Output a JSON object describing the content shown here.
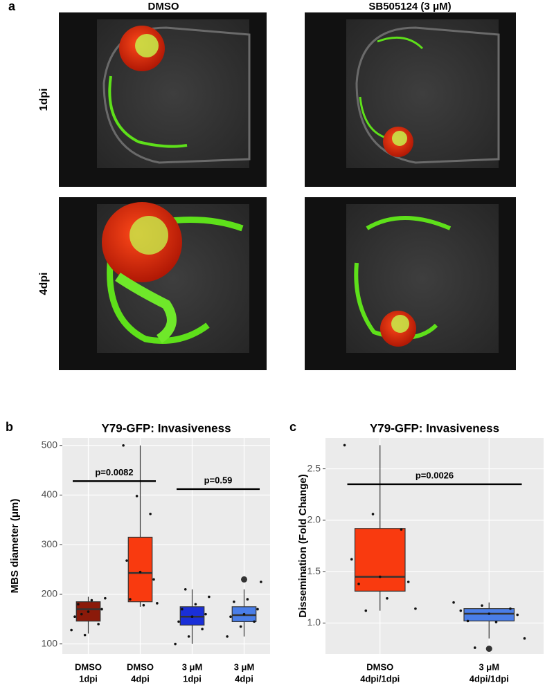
{
  "panel_a": {
    "label": "a",
    "columns": [
      "DMSO",
      "SB505124 (3 μM)"
    ],
    "rows": [
      "1dpi",
      "4dpi"
    ]
  },
  "chart_data": [
    {
      "type": "box",
      "panel_label": "b",
      "title": "Y79-GFP: Invasiveness",
      "y_label": "MBS diameter (μm)",
      "categories": [
        [
          "DMSO",
          "1dpi"
        ],
        [
          "DMSO",
          "4dpi"
        ],
        [
          "3 μM",
          "1dpi"
        ],
        [
          "3 μM",
          "4dpi"
        ]
      ],
      "ylim": [
        80,
        515
      ],
      "yticks": [
        100,
        200,
        300,
        400,
        500
      ],
      "grid": true,
      "boxes": [
        {
          "color": "#8b1a0a",
          "min": 121,
          "q1": 146,
          "median": 170,
          "q3": 185,
          "max": 195,
          "outliers": [],
          "points": [
            128,
            118,
            140,
            155,
            165,
            170,
            180,
            188,
            192,
            160
          ]
        },
        {
          "color": "#f93a0f",
          "min": 175,
          "q1": 185,
          "median": 243,
          "q3": 315,
          "max": 500,
          "outliers": [],
          "points": [
            500,
            398,
            362,
            268,
            245,
            230,
            190,
            178,
            182
          ]
        },
        {
          "color": "#1a2fd8",
          "min": 100,
          "q1": 138,
          "median": 155,
          "q3": 175,
          "max": 210,
          "outliers": [],
          "points": [
            100,
            115,
            130,
            145,
            155,
            160,
            170,
            180,
            195,
            210
          ]
        },
        {
          "color": "#4a7ee8",
          "min": 115,
          "q1": 145,
          "median": 158,
          "q3": 175,
          "max": 210,
          "outliers": [
            230
          ],
          "points": [
            115,
            135,
            145,
            155,
            160,
            170,
            185,
            190,
            225
          ]
        }
      ],
      "significance": [
        {
          "label": "p=0.0082",
          "y": 428,
          "categories": [
            0,
            1
          ]
        },
        {
          "label": "p=0.59",
          "y": 412,
          "categories": [
            2,
            3
          ]
        }
      ]
    },
    {
      "type": "box",
      "panel_label": "c",
      "title": "Y79-GFP: Invasiveness",
      "y_label": "Dissemination (Fold Change)",
      "categories": [
        [
          "DMSO",
          "4dpi/1dpi"
        ],
        [
          "3 μM",
          "4dpi/1dpi"
        ]
      ],
      "ylim": [
        0.7,
        2.8
      ],
      "yticks": [
        {
          "value": 1,
          "label": "1.0"
        },
        1.5,
        {
          "value": 2,
          "label": "2.0"
        },
        2.5
      ],
      "grid": true,
      "boxes": [
        {
          "color": "#f93a0f",
          "min": 1.12,
          "q1": 1.31,
          "median": 1.45,
          "q3": 1.92,
          "max": 2.73,
          "outliers": [],
          "points": [
            2.73,
            2.06,
            1.91,
            1.62,
            1.45,
            1.4,
            1.38,
            1.24,
            1.14,
            1.12
          ]
        },
        {
          "color": "#4a7ee8",
          "min": 0.85,
          "q1": 1.02,
          "median": 1.09,
          "q3": 1.14,
          "max": 1.2,
          "outliers": [
            0.75
          ],
          "points": [
            1.2,
            1.17,
            1.14,
            1.12,
            1.09,
            1.08,
            1.02,
            1.01,
            0.85,
            0.76
          ]
        }
      ],
      "significance": [
        {
          "label": "p=0.0026",
          "y": 2.35,
          "categories": [
            0,
            1
          ]
        }
      ]
    }
  ]
}
